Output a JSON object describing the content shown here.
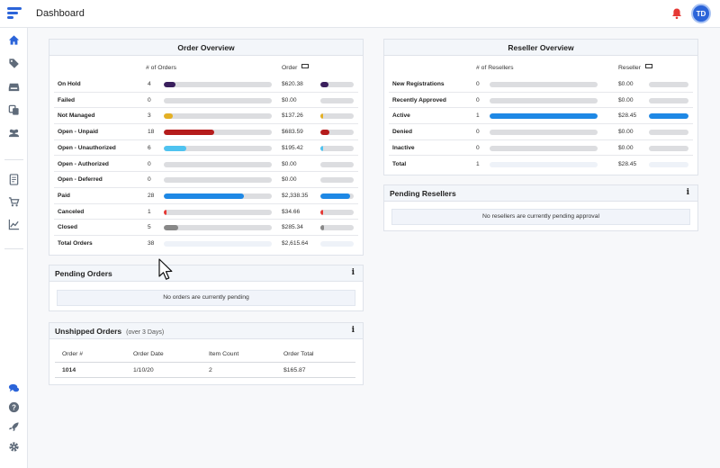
{
  "header": {
    "title": "Dashboard",
    "avatar_initials": "TD"
  },
  "sidebar": {
    "icons": [
      "home-icon",
      "tag-icon",
      "inbox-icon",
      "copy-icon",
      "users-icon",
      "document-icon",
      "cart-icon",
      "chart-icon",
      "chat-icon",
      "help-icon",
      "rocket-icon",
      "gear-icon"
    ]
  },
  "order_overview": {
    "title": "Order Overview",
    "col_count": "# of Orders",
    "col_order": "Order",
    "rows": [
      {
        "label": "On Hold",
        "count": "4",
        "amount": "$620.38",
        "count_fill": 0.105,
        "amount_fill": 0.24,
        "color": "#3a1f5d"
      },
      {
        "label": "Failed",
        "count": "0",
        "amount": "$0.00",
        "count_fill": 0,
        "amount_fill": 0,
        "color": "#999999"
      },
      {
        "label": "Not Managed",
        "count": "3",
        "amount": "$137.26",
        "count_fill": 0.08,
        "amount_fill": 0.055,
        "color": "#e4b024"
      },
      {
        "label": "Open - Unpaid",
        "count": "18",
        "amount": "$683.59",
        "count_fill": 0.47,
        "amount_fill": 0.27,
        "color": "#b51c1c"
      },
      {
        "label": "Open - Unauthorized",
        "count": "6",
        "amount": "$195.42",
        "count_fill": 0.21,
        "amount_fill": 0.08,
        "color": "#4fc3f0"
      },
      {
        "label": "Open - Authorized",
        "count": "0",
        "amount": "$0.00",
        "count_fill": 0,
        "amount_fill": 0,
        "color": "#999999"
      },
      {
        "label": "Open - Deferred",
        "count": "0",
        "amount": "$0.00",
        "count_fill": 0,
        "amount_fill": 0,
        "color": "#999999"
      },
      {
        "label": "Paid",
        "count": "28",
        "amount": "$2,338.35",
        "count_fill": 0.74,
        "amount_fill": 0.89,
        "color": "#1e88e5"
      },
      {
        "label": "Canceled",
        "count": "1",
        "amount": "$34.66",
        "count_fill": 0.026,
        "amount_fill": 0.013,
        "color": "#e53935"
      },
      {
        "label": "Closed",
        "count": "5",
        "amount": "$285.34",
        "count_fill": 0.13,
        "amount_fill": 0.11,
        "color": "#888888"
      }
    ],
    "total": {
      "label": "Total Orders",
      "count": "38",
      "amount": "$2,615.64"
    }
  },
  "reseller_overview": {
    "title": "Reseller Overview",
    "col_count": "# of Resellers",
    "col_reseller": "Reseller",
    "rows": [
      {
        "label": "New Registrations",
        "count": "0",
        "amount": "$0.00",
        "count_fill": 0,
        "amount_fill": 0,
        "color": "#999999"
      },
      {
        "label": "Recently Approved",
        "count": "0",
        "amount": "$0.00",
        "count_fill": 0,
        "amount_fill": 0,
        "color": "#999999"
      },
      {
        "label": "Active",
        "count": "1",
        "amount": "$28.45",
        "count_fill": 1,
        "amount_fill": 1,
        "color": "#1e88e5"
      },
      {
        "label": "Denied",
        "count": "0",
        "amount": "$0.00",
        "count_fill": 0,
        "amount_fill": 0,
        "color": "#999999"
      },
      {
        "label": "Inactive",
        "count": "0",
        "amount": "$0.00",
        "count_fill": 0,
        "amount_fill": 0,
        "color": "#999999"
      }
    ],
    "total": {
      "label": "Total",
      "count": "1",
      "amount": "$28.45"
    }
  },
  "pending_orders": {
    "title": "Pending Orders",
    "info": "i",
    "message": "No orders are currently pending"
  },
  "pending_resellers": {
    "title": "Pending Resellers",
    "info": "i",
    "message": "No resellers are currently pending approval"
  },
  "unshipped_orders": {
    "title": "Unshipped Orders",
    "subtitle": "(over 3 Days)",
    "info": "i",
    "columns": [
      "Order #",
      "Order Date",
      "Item Count",
      "Order Total"
    ],
    "rows": [
      [
        "1014",
        "1/10/20",
        "2",
        "$165.87"
      ]
    ]
  }
}
